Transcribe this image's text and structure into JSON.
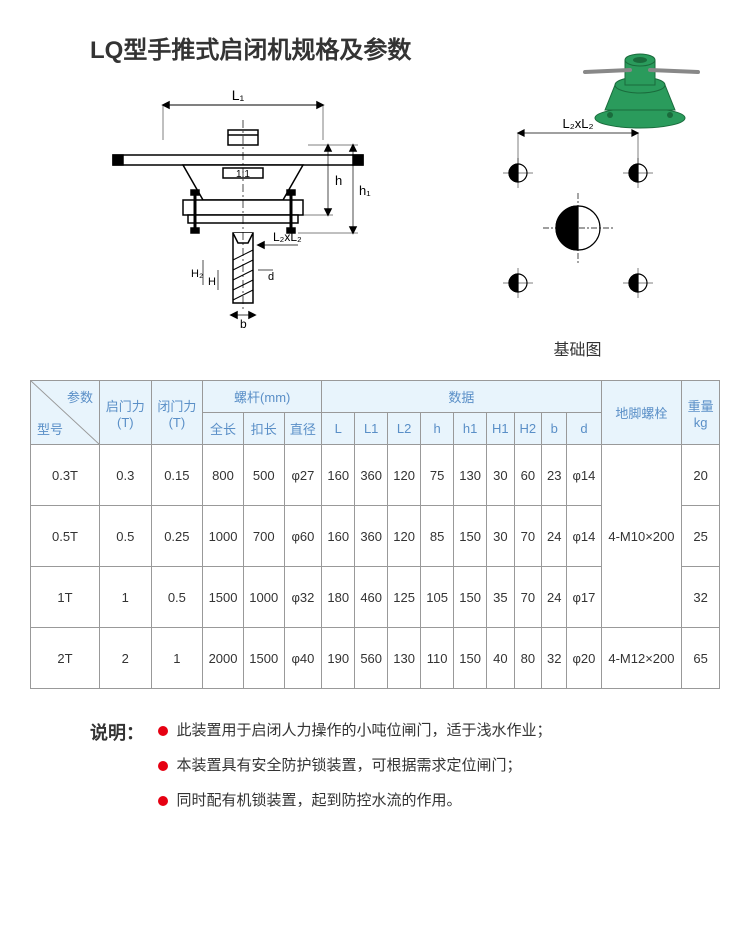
{
  "title": "LQ型手推式启闭机规格及参数",
  "diagram_caption": "基础图",
  "diagram_labels": {
    "L1": "L₁",
    "L2xL2": "L₂xL₂",
    "h": "h",
    "h1": "h₁",
    "H2": "H₂",
    "H": "H",
    "b": "b",
    "d": "d"
  },
  "header": {
    "params": "参数",
    "model": "型号",
    "open_force": "启门力\n(T)",
    "close_force": "闭门力\n(T)",
    "screw": "螺杆(mm)",
    "screw_sub": [
      "全长",
      "扣长",
      "直径"
    ],
    "data": "数据",
    "data_sub": [
      "L",
      "L1",
      "L2",
      "h",
      "h1",
      "H1",
      "H2",
      "b",
      "d"
    ],
    "anchor": "地脚螺栓",
    "weight": "重量\nkg"
  },
  "rows": [
    {
      "model": "0.3T",
      "open": "0.3",
      "close": "0.15",
      "full": "800",
      "buckle": "500",
      "dia": "φ27",
      "L": "160",
      "L1": "360",
      "L2": "120",
      "h": "75",
      "h1": "130",
      "H1": "30",
      "H2": "60",
      "b": "23",
      "d": "φ14",
      "weight": "20"
    },
    {
      "model": "0.5T",
      "open": "0.5",
      "close": "0.25",
      "full": "1000",
      "buckle": "700",
      "dia": "φ60",
      "L": "160",
      "L1": "360",
      "L2": "120",
      "h": "85",
      "h1": "150",
      "H1": "30",
      "H2": "70",
      "b": "24",
      "d": "φ14",
      "weight": "25"
    },
    {
      "model": "1T",
      "open": "1",
      "close": "0.5",
      "full": "1500",
      "buckle": "1000",
      "dia": "φ32",
      "L": "180",
      "L1": "460",
      "L2": "125",
      "h": "105",
      "h1": "150",
      "H1": "35",
      "H2": "70",
      "b": "24",
      "d": "φ17",
      "weight": "32"
    },
    {
      "model": "2T",
      "open": "2",
      "close": "1",
      "full": "2000",
      "buckle": "1500",
      "dia": "φ40",
      "L": "190",
      "L1": "560",
      "L2": "130",
      "h": "110",
      "h1": "150",
      "H1": "40",
      "H2": "80",
      "b": "32",
      "d": "φ20",
      "weight": "65"
    }
  ],
  "anchors": [
    "4-M10×200",
    "4-M12×200"
  ],
  "notes_title": "说明：",
  "notes": [
    "此装置用于启闭人力操作的小吨位闸门，适于浅水作业；",
    "本装置具有安全防护锁装置，可根据需求定位闸门；",
    "同时配有机锁装置，起到防控水流的作用。"
  ],
  "colors": {
    "header_bg": "#e8f4fc",
    "header_fg": "#5a8fc7",
    "border": "#999",
    "bullet": "#e60012",
    "photo_green": "#2a9b5c",
    "photo_dark": "#1a6b3c"
  }
}
